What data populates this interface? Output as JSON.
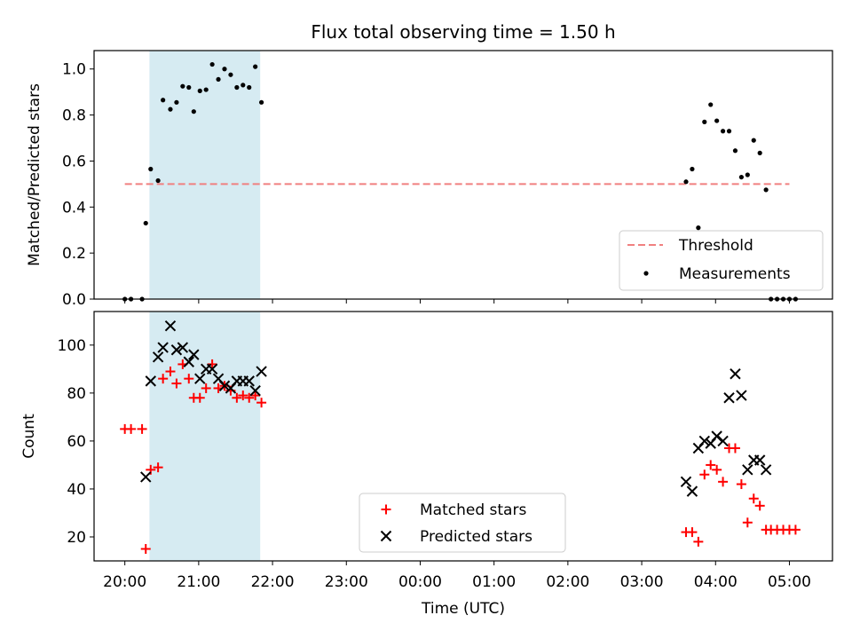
{
  "chart_data": [
    {
      "type": "scatter",
      "title": "Flux total observing time = 1.50 h",
      "xlabel": "",
      "ylabel": "Matched/Predicted stars",
      "ylim": [
        0,
        1.08
      ],
      "yticks": [
        "0.0",
        "0.2",
        "0.4",
        "0.6",
        "0.8",
        "1.0"
      ],
      "ytick_values": [
        0,
        0.2,
        0.4,
        0.6,
        0.8,
        1.0
      ],
      "shaded_span": [
        "20:20",
        "21:50"
      ],
      "threshold": {
        "name": "Threshold",
        "y": 0.5,
        "x": [
          "20:00",
          "05:00"
        ],
        "color": "#f08080"
      },
      "legend": {
        "placement": "lower-right",
        "entries": [
          "Threshold",
          "Measurements"
        ]
      },
      "series": [
        {
          "name": "Measurements",
          "color": "#000000",
          "points": [
            [
              "20:00",
              0.0
            ],
            [
              "20:05",
              0.0
            ],
            [
              "20:14",
              0.0
            ],
            [
              "20:17",
              0.33
            ],
            [
              "20:21",
              0.565
            ],
            [
              "20:27",
              0.515
            ],
            [
              "20:31",
              0.865
            ],
            [
              "20:37",
              0.825
            ],
            [
              "20:42",
              0.855
            ],
            [
              "20:47",
              0.925
            ],
            [
              "20:52",
              0.92
            ],
            [
              "20:56",
              0.815
            ],
            [
              "21:01",
              0.905
            ],
            [
              "21:06",
              0.91
            ],
            [
              "21:11",
              1.02
            ],
            [
              "21:16",
              0.955
            ],
            [
              "21:21",
              1.0
            ],
            [
              "21:26",
              0.975
            ],
            [
              "21:31",
              0.92
            ],
            [
              "21:36",
              0.93
            ],
            [
              "21:41",
              0.92
            ],
            [
              "21:46",
              1.01
            ],
            [
              "21:51",
              0.855
            ],
            [
              "03:36",
              0.51
            ],
            [
              "03:41",
              0.565
            ],
            [
              "03:46",
              0.31
            ],
            [
              "03:51",
              0.77
            ],
            [
              "03:56",
              0.845
            ],
            [
              "04:01",
              0.775
            ],
            [
              "04:06",
              0.73
            ],
            [
              "04:11",
              0.73
            ],
            [
              "04:16",
              0.645
            ],
            [
              "04:21",
              0.53
            ],
            [
              "04:26",
              0.54
            ],
            [
              "04:31",
              0.69
            ],
            [
              "04:36",
              0.635
            ],
            [
              "04:41",
              0.475
            ],
            [
              "04:45",
              0.0
            ],
            [
              "04:50",
              0.0
            ],
            [
              "04:55",
              0.0
            ],
            [
              "05:00",
              0.0
            ],
            [
              "05:05",
              0.0
            ]
          ]
        }
      ]
    },
    {
      "type": "scatter",
      "title": "",
      "xlabel": "Time (UTC)",
      "ylabel": "Count",
      "ylim": [
        10,
        114
      ],
      "yticks": [
        "20",
        "40",
        "60",
        "80",
        "100"
      ],
      "ytick_values": [
        20,
        40,
        60,
        80,
        100
      ],
      "xticks": [
        "20:00",
        "21:00",
        "22:00",
        "23:00",
        "00:00",
        "01:00",
        "02:00",
        "03:00",
        "04:00",
        "05:00"
      ],
      "xlim": [
        "19:35",
        "05:35"
      ],
      "shaded_span": [
        "20:20",
        "21:50"
      ],
      "legend": {
        "placement": "lower-center",
        "entries": [
          "Matched stars",
          "Predicted stars"
        ]
      },
      "series": [
        {
          "name": "Matched stars",
          "color": "#ff0000",
          "marker": "plus",
          "points": [
            [
              "20:00",
              65
            ],
            [
              "20:05",
              65
            ],
            [
              "20:14",
              65
            ],
            [
              "20:17",
              15
            ],
            [
              "20:21",
              48
            ],
            [
              "20:27",
              49
            ],
            [
              "20:31",
              86
            ],
            [
              "20:37",
              89
            ],
            [
              "20:42",
              84
            ],
            [
              "20:47",
              92
            ],
            [
              "20:52",
              86
            ],
            [
              "20:56",
              78
            ],
            [
              "21:01",
              78
            ],
            [
              "21:06",
              82
            ],
            [
              "21:11",
              92
            ],
            [
              "21:16",
              82
            ],
            [
              "21:21",
              83
            ],
            [
              "21:26",
              81
            ],
            [
              "21:31",
              78
            ],
            [
              "21:36",
              79
            ],
            [
              "21:41",
              78
            ],
            [
              "21:46",
              79
            ],
            [
              "21:51",
              76
            ],
            [
              "03:36",
              22
            ],
            [
              "03:41",
              22
            ],
            [
              "03:46",
              18
            ],
            [
              "03:51",
              46
            ],
            [
              "03:56",
              50
            ],
            [
              "04:01",
              48
            ],
            [
              "04:06",
              43
            ],
            [
              "04:11",
              57
            ],
            [
              "04:16",
              57
            ],
            [
              "04:21",
              42
            ],
            [
              "04:26",
              26
            ],
            [
              "04:31",
              36
            ],
            [
              "04:36",
              33
            ],
            [
              "04:41",
              23
            ],
            [
              "04:45",
              23
            ],
            [
              "04:50",
              23
            ],
            [
              "04:55",
              23
            ],
            [
              "05:00",
              23
            ],
            [
              "05:05",
              23
            ]
          ]
        },
        {
          "name": "Predicted stars",
          "color": "#000000",
          "marker": "x",
          "points": [
            [
              "20:17",
              45
            ],
            [
              "20:21",
              85
            ],
            [
              "20:27",
              95
            ],
            [
              "20:31",
              99
            ],
            [
              "20:37",
              108
            ],
            [
              "20:42",
              98
            ],
            [
              "20:47",
              99
            ],
            [
              "20:52",
              93
            ],
            [
              "20:56",
              96
            ],
            [
              "21:01",
              86
            ],
            [
              "21:06",
              90
            ],
            [
              "21:11",
              90
            ],
            [
              "21:16",
              86
            ],
            [
              "21:21",
              83
            ],
            [
              "21:26",
              82
            ],
            [
              "21:31",
              85
            ],
            [
              "21:36",
              85
            ],
            [
              "21:41",
              85
            ],
            [
              "21:46",
              81
            ],
            [
              "21:51",
              89
            ],
            [
              "03:36",
              43
            ],
            [
              "03:41",
              39
            ],
            [
              "03:46",
              57
            ],
            [
              "03:51",
              60
            ],
            [
              "03:56",
              59
            ],
            [
              "04:01",
              62
            ],
            [
              "04:06",
              60
            ],
            [
              "04:11",
              78
            ],
            [
              "04:16",
              88
            ],
            [
              "04:21",
              79
            ],
            [
              "04:26",
              48
            ],
            [
              "04:31",
              52
            ],
            [
              "04:36",
              52
            ],
            [
              "04:41",
              48
            ]
          ]
        }
      ]
    }
  ]
}
